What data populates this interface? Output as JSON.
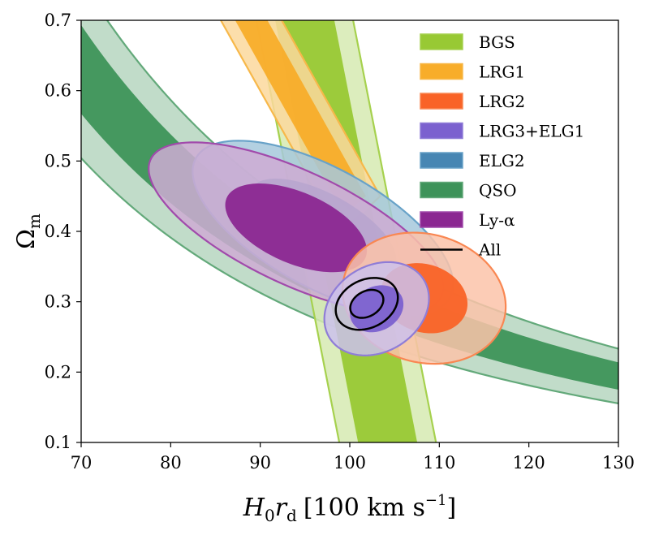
{
  "chart_data": {
    "type": "contour",
    "xlabel": "H0 rd [100 km s^-1]",
    "xlabel_parts": {
      "base": "H",
      "sub1": "0",
      "mid": "r",
      "sub2": "d",
      "units": "[100 km s",
      "exp": "−1",
      "close": "]"
    },
    "ylabel": "Ωm",
    "ylabel_parts": {
      "base": "Ω",
      "sub": "m"
    },
    "xlim": [
      70,
      130
    ],
    "ylim": [
      0.1,
      0.7
    ],
    "xticks": [
      "70",
      "80",
      "90",
      "100",
      "110",
      "120",
      "130"
    ],
    "yticks": [
      "0.1",
      "0.2",
      "0.3",
      "0.4",
      "0.5",
      "0.6",
      "0.7"
    ],
    "legend_position": "top-right",
    "series": [
      {
        "name": "BGS",
        "kind": "band",
        "color_inner": "#98c934",
        "color_outer": "#d6eab2",
        "edge": "#a6d14e",
        "x_at_y01": 105,
        "x_at_y07": 95,
        "inner_half_width": 3.3,
        "outer_half_width": 5.4
      },
      {
        "name": "LRG1",
        "kind": "band",
        "color_inner": "#f8ad2a",
        "color_outer": "#fbd89c",
        "edge": "#f7b84a",
        "x_at_y045": 100,
        "x_at_y07": 89,
        "inner_half_width": 1.8,
        "outer_half_width": 3.4
      },
      {
        "name": "LRG2",
        "kind": "ellipse",
        "color_inner": "#f96327",
        "color_outer": "#fcc3a9",
        "edge": "#f98752",
        "cx": 108.3,
        "cy": 0.305,
        "ang_deg": -50,
        "a68": 5.3,
        "b68": 0.45,
        "a95": 9.8,
        "b95": 0.86
      },
      {
        "name": "LRG3+ELG1",
        "kind": "ellipse",
        "color_inner": "#7b61cf",
        "color_outer": "#cbc1ec",
        "edge": "#8f7dd7",
        "cx": 103,
        "cy": 0.29,
        "ang_deg": -30,
        "a68": 2.8,
        "b68": 0.35,
        "a95": 5.4,
        "b95": 0.7
      },
      {
        "name": "ELG2",
        "kind": "ellipse",
        "color_inner": "#4786b3",
        "color_outer": "#a6c8dc",
        "edge": "#68a2c8",
        "cx": 97,
        "cy": 0.405,
        "ang_deg": -38,
        "a68": 9.8,
        "b68": 0.45,
        "a95": 17.4,
        "b95": 0.79
      },
      {
        "name": "QSO",
        "kind": "band",
        "color_inner": "#3e935a",
        "color_outer": "#b6d6c0",
        "edge": "#63a97a",
        "k": 1.0,
        "x0": 100,
        "y0": 0.32,
        "alpha": 1.9,
        "inner_half_width": 0.025,
        "outer_half_width": 0.05
      },
      {
        "name": "Ly-α",
        "kind": "ellipse",
        "color_inner": "#8b2791",
        "color_outer": "#ceabd3",
        "edge": "#a14aab",
        "cx": 94,
        "cy": 0.405,
        "ang_deg": -33,
        "a68": 8.9,
        "b68": 0.48,
        "a95": 19,
        "b95": 0.76
      },
      {
        "name": "All",
        "kind": "ellipse",
        "color_inner": "none",
        "color_outer": "none",
        "edge": "#000000",
        "cx": 101.9,
        "cy": 0.297,
        "ang_deg": -38,
        "a68": 1.6,
        "b68": 0.22,
        "a95": 3.1,
        "b95": 0.4
      }
    ]
  }
}
